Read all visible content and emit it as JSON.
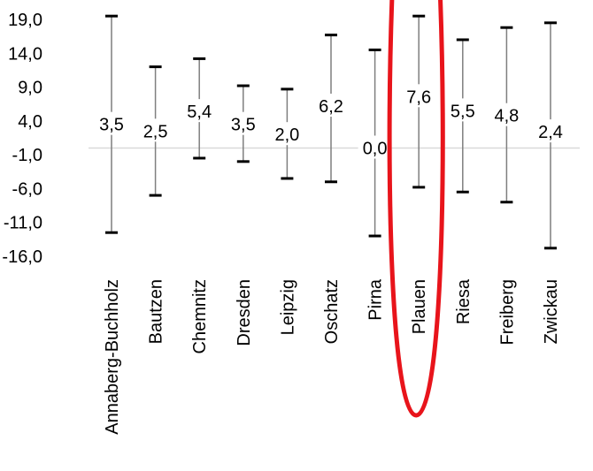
{
  "chart_data": {
    "type": "errorbar",
    "title": "",
    "xlabel": "",
    "ylabel": "",
    "ylim": [
      -16,
      19
    ],
    "yticks": [
      "19,0",
      "14,0",
      "9,0",
      "4,0",
      "-1,0",
      "-6,0",
      "-11,0",
      "-16,0"
    ],
    "ytick_values": [
      19,
      14,
      9,
      4,
      -1,
      -6,
      -11,
      -16
    ],
    "baseline": 0,
    "grid": false,
    "categories": [
      "Annaberg-Buchholz",
      "Bautzen",
      "Chemnitz",
      "Dresden",
      "Leipzig",
      "Oschatz",
      "Pirna",
      "Plauen",
      "Riesa",
      "Freiberg",
      "Zwickau"
    ],
    "values": [
      3.5,
      2.5,
      5.4,
      3.5,
      2.0,
      6.2,
      0.0,
      7.6,
      5.5,
      4.8,
      2.4
    ],
    "value_labels": [
      "3,5",
      "2,5",
      "5,4",
      "3,5",
      "2,0",
      "6,2",
      "0,0",
      "7,6",
      "5,5",
      "4,8",
      "2,4"
    ],
    "upper": [
      19.5,
      12.0,
      13.2,
      9.2,
      8.7,
      16.7,
      14.5,
      19.5,
      16.0,
      17.8,
      18.5
    ],
    "lower": [
      -12.5,
      -7.0,
      -1.5,
      -2.0,
      -4.5,
      -5.0,
      -13.0,
      -5.8,
      -6.5,
      -8.0,
      -14.8
    ],
    "highlight": {
      "category": "Plauen",
      "shape": "ellipse",
      "color": "#e8141b"
    },
    "colors": {
      "whisker": "#7f7f7f",
      "cap": "#000000",
      "baseline": "#d9d9d9"
    }
  }
}
